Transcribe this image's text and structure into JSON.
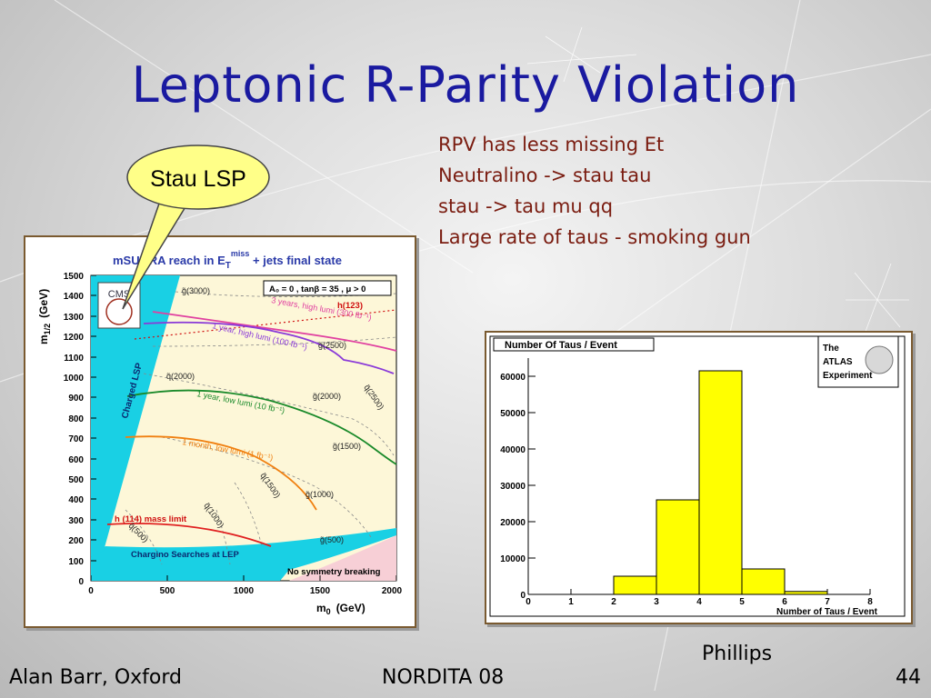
{
  "slide": {
    "title": "Leptonic R-Parity Violation",
    "bullets": [
      "RPV has less missing Et",
      "Neutralino -> stau tau",
      "stau -> tau mu qq",
      "Large rate of taus - smoking gun"
    ],
    "callout_label": "Stau LSP",
    "credit": "Phillips",
    "footer": {
      "author": "Alan Barr, Oxford",
      "event": "NORDITA 08",
      "page": "44"
    }
  },
  "colors": {
    "title": "#1a1aa0",
    "bullets": "#7a1c10",
    "hist_fill": "#ffff00"
  },
  "left_plot": {
    "title_prefix": "mSUGRA reach in E",
    "title_sub": "T",
    "title_sup": "miss",
    "title_suffix": " + jets final state",
    "xlabel": "m",
    "xlabel_sub": "0",
    "xlabel_unit": "(GeV)",
    "ylabel": "m",
    "ylabel_sub": "1/2",
    "ylabel_unit": "(GeV)",
    "logo": "CMS",
    "params": "A₀ = 0 ,  tanβ = 35 ,  μ > 0",
    "region_labels": [
      "Charged LSP",
      "Chargino Searches at LEP",
      "No symmetry breaking",
      "h (114) mass limit",
      "h(123)"
    ],
    "curve_labels": [
      "3 years, high lumi (300 fb⁻¹)",
      "1 year, high lumi (100 fb⁻¹)",
      "1 year, low lumi (10 fb⁻¹)",
      "1 month,  low lumi (1 fb⁻¹)"
    ],
    "mass_labels": [
      "g̃(3000)",
      "g̃(2500)",
      "q̃(2000)",
      "g̃(2000)",
      "q̃(2500)",
      "g̃(1500)",
      "q̃(1500)",
      "g̃(1000)",
      "q̃(1000)",
      "q̃(500)",
      "g̃(500)"
    ]
  },
  "chart_data": {
    "type": "bar",
    "title": "Number Of Taus / Event",
    "xlabel": "Number of Taus / Event",
    "ylabel": "",
    "logo": [
      "The",
      "ATLAS",
      "Experiment"
    ],
    "xlim": [
      0,
      8
    ],
    "ylim": [
      0,
      65000
    ],
    "x_ticks": [
      0,
      1,
      2,
      3,
      4,
      5,
      6,
      7,
      8
    ],
    "y_ticks": [
      0,
      10000,
      20000,
      30000,
      40000,
      50000,
      60000
    ],
    "bins": [
      {
        "x0": 0,
        "x1": 1,
        "value": 0
      },
      {
        "x0": 1,
        "x1": 2,
        "value": 0
      },
      {
        "x0": 2,
        "x1": 3,
        "value": 5000
      },
      {
        "x0": 3,
        "x1": 4,
        "value": 26000
      },
      {
        "x0": 4,
        "x1": 5,
        "value": 61500
      },
      {
        "x0": 5,
        "x1": 6,
        "value": 7000
      },
      {
        "x0": 6,
        "x1": 7,
        "value": 800
      },
      {
        "x0": 7,
        "x1": 8,
        "value": 0
      }
    ]
  }
}
